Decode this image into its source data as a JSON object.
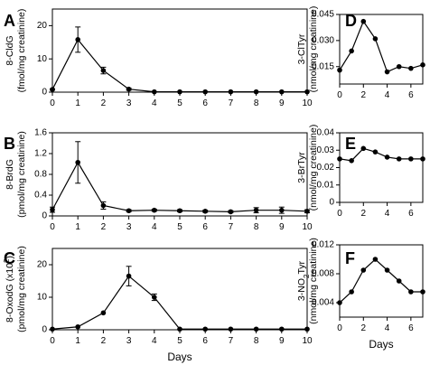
{
  "chart_data": [
    {
      "panel": "A",
      "type": "line",
      "ylabel": "8-CldG",
      "yunit": "(fmol/mg creatinine)",
      "xlabel": "",
      "x": [
        0,
        1,
        2,
        3,
        4,
        5,
        6,
        7,
        8,
        9,
        10
      ],
      "values": [
        0.8,
        15.8,
        6.5,
        0.9,
        0.1,
        0.1,
        0.1,
        0.1,
        0.1,
        0.1,
        0.1
      ],
      "errors": [
        0.2,
        3.8,
        1.0,
        0.3,
        0,
        0,
        0,
        0,
        0,
        0,
        0
      ],
      "xlim": [
        0,
        10
      ],
      "ylim": [
        0,
        25
      ],
      "xticks": [
        "0",
        "1",
        "2",
        "3",
        "4",
        "5",
        "6",
        "7",
        "8",
        "9",
        "10"
      ],
      "yticks": [
        "0",
        "10",
        "20"
      ],
      "ytick_values": [
        0,
        10,
        20
      ]
    },
    {
      "panel": "B",
      "type": "line",
      "ylabel": "8-BrdG",
      "yunit": "(pmol/mg creatinine)",
      "xlabel": "",
      "x": [
        0,
        1,
        2,
        3,
        4,
        5,
        6,
        7,
        8,
        9,
        10
      ],
      "values": [
        0.12,
        1.03,
        0.2,
        0.1,
        0.11,
        0.1,
        0.09,
        0.08,
        0.11,
        0.11,
        0.09
      ],
      "errors": [
        0.05,
        0.4,
        0.07,
        0.02,
        0.02,
        0.02,
        0.02,
        0.02,
        0.05,
        0.06,
        0.03
      ],
      "xlim": [
        0,
        10
      ],
      "ylim": [
        0,
        1.6
      ],
      "xticks": [
        "0",
        "1",
        "2",
        "3",
        "4",
        "5",
        "6",
        "7",
        "8",
        "9",
        "10"
      ],
      "yticks": [
        "0",
        "0.4",
        "0.8",
        "1.2",
        "1.6"
      ],
      "ytick_values": [
        0,
        0.4,
        0.8,
        1.2,
        1.6
      ]
    },
    {
      "panel": "C",
      "type": "line",
      "ylabel": "8-OxodG (x10²)",
      "yunit": "(pmol/mg creatinine)",
      "xlabel": "Days",
      "x": [
        0,
        1,
        2,
        3,
        4,
        5,
        6,
        7,
        8,
        9,
        10
      ],
      "values": [
        0.2,
        0.9,
        5.2,
        16.5,
        10,
        0.2,
        0.2,
        0.2,
        0.2,
        0.2,
        0.2
      ],
      "errors": [
        0,
        0,
        0,
        3.0,
        1.0,
        0,
        0,
        0,
        0,
        0,
        0
      ],
      "xlim": [
        0,
        10
      ],
      "ylim": [
        0,
        25
      ],
      "xticks": [
        "0",
        "1",
        "2",
        "3",
        "4",
        "5",
        "6",
        "7",
        "8",
        "9",
        "10"
      ],
      "yticks": [
        "0",
        "10",
        "20"
      ],
      "ytick_values": [
        0,
        10,
        20
      ]
    },
    {
      "panel": "D",
      "type": "line",
      "ylabel": "3-ClTyr",
      "yunit": "(nmol/mg creatinine)",
      "xlabel": "",
      "x": [
        0,
        1,
        2,
        3,
        4,
        5,
        6,
        7
      ],
      "values": [
        0.013,
        0.024,
        0.041,
        0.031,
        0.012,
        0.015,
        0.014,
        0.016
      ],
      "xlim": [
        0,
        7
      ],
      "ylim": [
        0.005,
        0.045
      ],
      "xticks": [
        "0",
        "2",
        "4",
        "6"
      ],
      "xtick_values": [
        0,
        2,
        4,
        6
      ],
      "yticks": [
        "0.015",
        "0.030",
        "0.045"
      ],
      "ytick_values": [
        0.015,
        0.03,
        0.045
      ]
    },
    {
      "panel": "E",
      "type": "line",
      "ylabel": "3-BrTyr",
      "yunit": "(nmol/mg creatinine)",
      "xlabel": "",
      "x": [
        0,
        1,
        2,
        3,
        4,
        5,
        6,
        7
      ],
      "values": [
        0.025,
        0.024,
        0.031,
        0.029,
        0.026,
        0.025,
        0.025,
        0.025
      ],
      "xlim": [
        0,
        7
      ],
      "ylim": [
        0,
        0.04
      ],
      "xticks": [
        "0",
        "2",
        "4",
        "6"
      ],
      "xtick_values": [
        0,
        2,
        4,
        6
      ],
      "yticks": [
        "0",
        "0.01",
        "0.02",
        "0.03",
        "0.04"
      ],
      "ytick_values": [
        0,
        0.01,
        0.02,
        0.03,
        0.04
      ]
    },
    {
      "panel": "F",
      "type": "line",
      "ylabel": "3-NO₂Tyr",
      "yunit": "(nmol/mg creatinine)",
      "xlabel": "Days",
      "x": [
        0,
        1,
        2,
        3,
        4,
        5,
        6,
        7
      ],
      "values": [
        0.004,
        0.0055,
        0.0085,
        0.01,
        0.0085,
        0.007,
        0.0055,
        0.0055
      ],
      "xlim": [
        0,
        7
      ],
      "ylim": [
        0.002,
        0.012
      ],
      "xticks": [
        "0",
        "2",
        "4",
        "6"
      ],
      "xtick_values": [
        0,
        2,
        4,
        6
      ],
      "yticks": [
        "0.004",
        "0.008",
        "0.012"
      ],
      "ytick_values": [
        0.004,
        0.008,
        0.012
      ]
    }
  ]
}
